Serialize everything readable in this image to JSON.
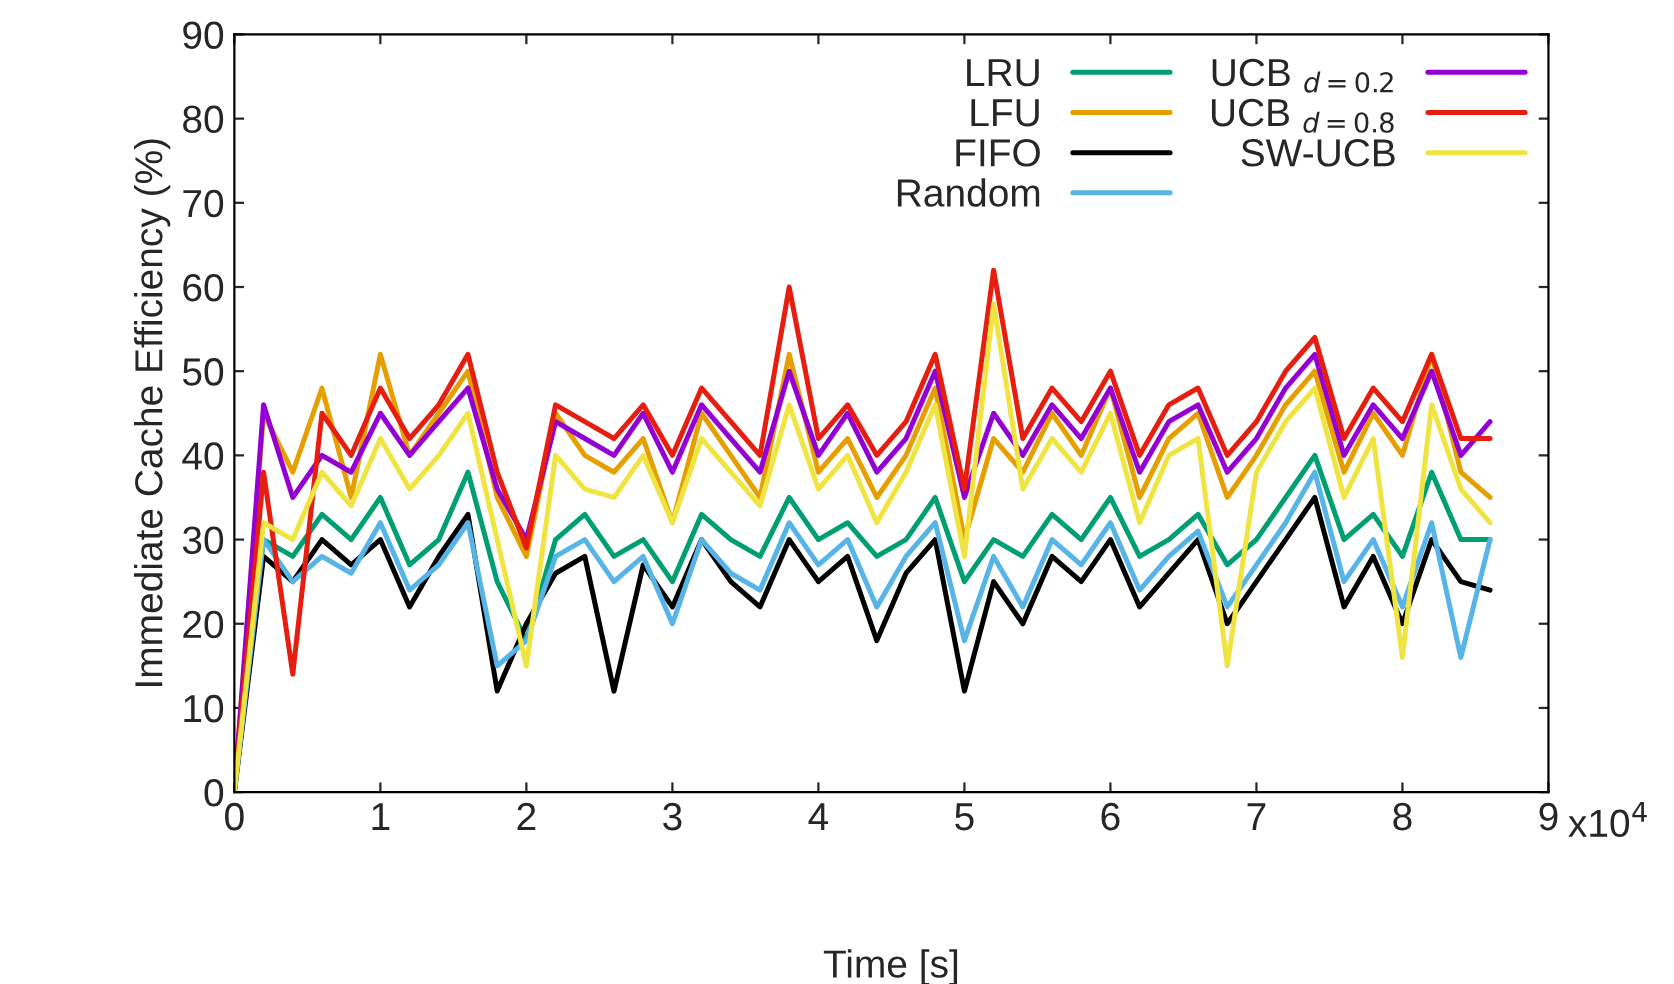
{
  "chart_data": {
    "type": "line",
    "xlabel": "Time [s]",
    "ylabel": "Immediate Cache Efficiency (%)",
    "x": [
      0,
      0.2,
      0.4,
      0.6,
      0.8,
      1,
      1.2,
      1.4,
      1.6,
      1.8,
      2,
      2.2,
      2.4,
      2.6,
      2.8,
      3,
      3.2,
      3.4,
      3.6,
      3.8,
      4,
      4.2,
      4.4,
      4.6,
      4.8,
      5,
      5.2,
      5.4,
      5.6,
      5.8,
      6,
      6.2,
      6.4,
      6.6,
      6.8,
      7,
      7.2,
      7.4,
      7.6,
      7.8,
      8,
      8.2,
      8.4,
      8.6
    ],
    "series": [
      {
        "name": "LRU",
        "color": "#009e73",
        "values": [
          0,
          30,
          28,
          33,
          30,
          35,
          27,
          30,
          38,
          25,
          18,
          30,
          33,
          28,
          30,
          25,
          33,
          30,
          28,
          35,
          30,
          32,
          28,
          30,
          35,
          25,
          30,
          28,
          33,
          30,
          35,
          28,
          30,
          33,
          27,
          30,
          35,
          40,
          30,
          33,
          28,
          38,
          30,
          30
        ]
      },
      {
        "name": "LFU",
        "color": "#e69f00",
        "values": [
          0,
          45,
          38,
          48,
          35,
          52,
          40,
          45,
          50,
          35,
          28,
          45,
          40,
          38,
          42,
          32,
          45,
          40,
          35,
          52,
          38,
          42,
          35,
          40,
          48,
          30,
          42,
          38,
          45,
          40,
          48,
          35,
          42,
          45,
          35,
          40,
          46,
          50,
          38,
          45,
          40,
          52,
          38,
          35
        ]
      },
      {
        "name": "FIFO",
        "color": "#000000",
        "values": [
          0,
          28,
          25,
          30,
          27,
          30,
          22,
          28,
          33,
          12,
          20,
          26,
          28,
          12,
          27,
          22,
          30,
          25,
          22,
          30,
          25,
          28,
          18,
          26,
          30,
          12,
          25,
          20,
          28,
          25,
          30,
          22,
          26,
          30,
          20,
          25,
          30,
          35,
          22,
          28,
          20,
          30,
          25,
          24
        ]
      },
      {
        "name": "Random",
        "color": "#56b4e9",
        "values": [
          0,
          30,
          25,
          28,
          26,
          32,
          24,
          27,
          32,
          15,
          18,
          28,
          30,
          25,
          28,
          20,
          30,
          26,
          24,
          32,
          27,
          30,
          22,
          28,
          32,
          18,
          28,
          22,
          30,
          27,
          32,
          24,
          28,
          31,
          22,
          27,
          32,
          38,
          25,
          30,
          22,
          32,
          16,
          30
        ]
      },
      {
        "name": "UCB $_{d=0.2}$",
        "color": "#9400d3",
        "values": [
          0,
          46,
          35,
          40,
          38,
          45,
          40,
          44,
          48,
          36,
          30,
          44,
          42,
          40,
          45,
          38,
          46,
          42,
          38,
          50,
          40,
          45,
          38,
          42,
          50,
          35,
          45,
          40,
          46,
          42,
          48,
          38,
          44,
          46,
          38,
          42,
          48,
          52,
          40,
          46,
          42,
          50,
          40,
          44
        ]
      },
      {
        "name": "UCB $_{d=0.8}$",
        "color": "#e51e10",
        "values": [
          0,
          38,
          14,
          45,
          40,
          48,
          42,
          46,
          52,
          38,
          29,
          46,
          44,
          42,
          46,
          40,
          48,
          44,
          40,
          60,
          42,
          46,
          40,
          44,
          52,
          36,
          62,
          42,
          48,
          44,
          50,
          40,
          46,
          48,
          40,
          44,
          50,
          54,
          42,
          48,
          44,
          52,
          42,
          42
        ]
      },
      {
        "name": "SW-UCB",
        "color": "#f0e442",
        "values": [
          0,
          32,
          30,
          38,
          34,
          42,
          36,
          40,
          45,
          30,
          15,
          40,
          36,
          35,
          40,
          32,
          42,
          38,
          34,
          46,
          36,
          40,
          32,
          38,
          46,
          28,
          58,
          36,
          42,
          38,
          45,
          32,
          40,
          42,
          15,
          38,
          44,
          48,
          35,
          42,
          16,
          46,
          36,
          32
        ]
      }
    ],
    "xlim": [
      0,
      9
    ],
    "xticks": [
      0,
      1,
      2,
      3,
      4,
      5,
      6,
      7,
      8,
      9
    ],
    "annotations": [
      "x10$^{4}$"
    ],
    "ylim": [
      0,
      90
    ],
    "yticks": [
      0,
      10,
      20,
      30,
      40,
      50,
      60,
      70,
      80,
      90
    ],
    "grid": false,
    "legend": "top right"
  }
}
